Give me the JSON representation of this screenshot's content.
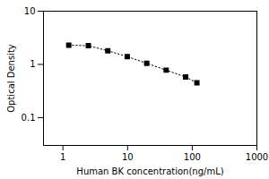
{
  "chart_data": {
    "type": "line",
    "xlabel": "Human BK concentration(ng/mL)",
    "ylabel": "Optical Density",
    "x": [
      1.23,
      2.47,
      4.94,
      9.88,
      19.75,
      39.5,
      79.0,
      118.0
    ],
    "values": [
      2.3,
      2.25,
      1.8,
      1.4,
      1.05,
      0.78,
      0.58,
      0.45
    ],
    "xlim": [
      0.5,
      1000
    ],
    "ylim": [
      0.03,
      10
    ],
    "xticks": [
      1,
      10,
      100,
      1000
    ],
    "yticks": [
      0.1,
      1,
      10
    ],
    "log": true,
    "grid": false,
    "color": "black",
    "marker": "square",
    "line_style": "dotted"
  }
}
